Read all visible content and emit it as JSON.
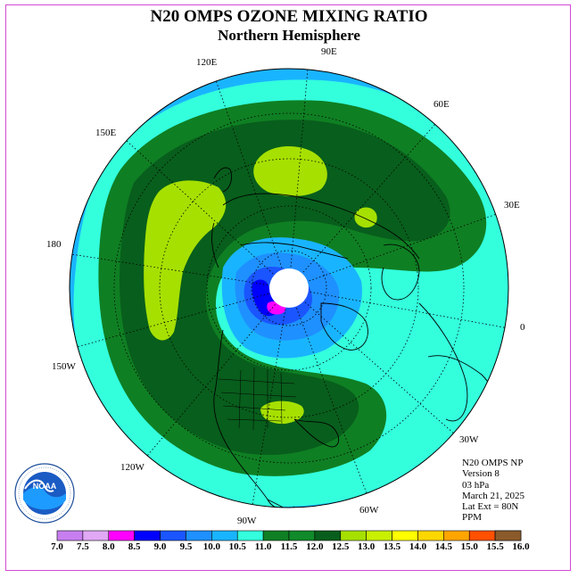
{
  "title": "N20 OMPS OZONE MIXING RATIO",
  "subtitle": "Northern Hemisphere",
  "longitude_labels": {
    "lon_90E": "90E",
    "lon_60E": "60E",
    "lon_30E": "30E",
    "lon_0": "0",
    "lon_30W": "30W",
    "lon_60W": "60W",
    "lon_90W": "90W",
    "lon_120W": "120W",
    "lon_150W": "150W",
    "lon_180": "180",
    "lon_150E": "150E",
    "lon_120E": "120E"
  },
  "info": {
    "instrument": "N20 OMPS NP",
    "version": "Version 8",
    "level": "03 hPa",
    "date": "March 21, 2025",
    "lat_ext": "Lat Ext = 80N",
    "units": "PPM"
  },
  "colorbar": {
    "labels": [
      "7.0",
      "7.5",
      "8.0",
      "8.5",
      "9.0",
      "9.5",
      "10.0",
      "10.5",
      "11.0",
      "11.5",
      "12.0",
      "12.5",
      "13.0",
      "13.5",
      "14.0",
      "14.5",
      "15.0",
      "15.5",
      "16.0"
    ],
    "colors": [
      "#c77ff0",
      "#e0a8f5",
      "#ff00ff",
      "#0000ff",
      "#1a55ff",
      "#1e90ff",
      "#19b4ff",
      "#33ffdd",
      "#0f7f23",
      "#108a2a",
      "#085e1c",
      "#a6e000",
      "#c8f000",
      "#ffff00",
      "#ffd700",
      "#ffa500",
      "#ff5000",
      "#ff0000",
      "#8b5a2b"
    ]
  },
  "map_colors": {
    "level_10_0": "#19b4ff",
    "level_10_5": "#33ffdd",
    "level_11_0": "#0f7f23",
    "level_11_5": "#108a2a",
    "level_12_0": "#085e1c",
    "level_12_5": "#a6e000",
    "level_9_5": "#1e90ff",
    "level_9_0": "#1a55ff",
    "level_8_5": "#0000ff",
    "level_8_0": "#ff00ff"
  },
  "logo_text": "NOAA"
}
